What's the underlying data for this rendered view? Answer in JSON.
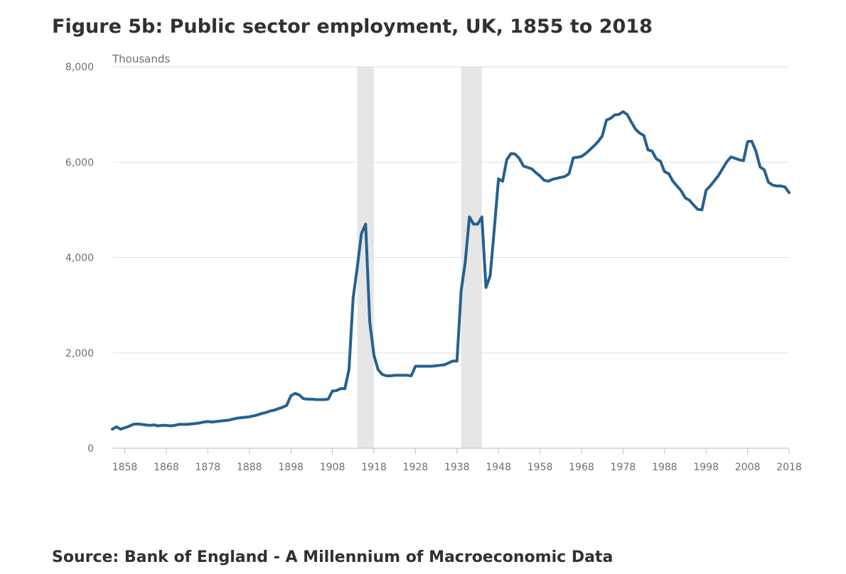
{
  "header": {
    "title": "Figure 5b: Public sector employment, UK, 1855 to 2018"
  },
  "footer": {
    "source": "Source: Bank of England - A Millennium of Macroeconomic Data"
  },
  "colors": {
    "line": "#27608f",
    "shade": "#e6e6e6",
    "grid": "#e2e2e3",
    "axis": "#bdbdbd",
    "text": "#707071",
    "title": "#323132"
  },
  "chart_data": {
    "type": "line",
    "title": "Figure 5b: Public sector employment, UK, 1855 to 2018",
    "ylabel": "Thousands",
    "xlabel": "",
    "xlim": [
      1855,
      2018
    ],
    "ylim": [
      0,
      8000
    ],
    "yticks": [
      0,
      2000,
      4000,
      6000,
      8000
    ],
    "ytick_labels": [
      "0",
      "2,000",
      "4,000",
      "6,000",
      "8,000"
    ],
    "xticks": [
      1858,
      1868,
      1878,
      1888,
      1898,
      1908,
      1918,
      1928,
      1938,
      1948,
      1958,
      1968,
      1978,
      1988,
      1998,
      2008,
      2018
    ],
    "xtick_labels": [
      "1858",
      "1868",
      "1878",
      "1888",
      "1898",
      "1908",
      "1918",
      "1928",
      "1938",
      "1948",
      "1958",
      "1968",
      "1978",
      "1988",
      "1998",
      "2008",
      "2018"
    ],
    "grid": true,
    "legend": "none",
    "shaded_periods": [
      [
        1914,
        1918
      ],
      [
        1939,
        1944
      ]
    ],
    "series": [
      {
        "name": "",
        "x": [
          1855,
          1856,
          1857,
          1858,
          1859,
          1860,
          1861,
          1862,
          1863,
          1864,
          1865,
          1866,
          1867,
          1868,
          1869,
          1870,
          1871,
          1872,
          1873,
          1874,
          1875,
          1876,
          1877,
          1878,
          1879,
          1880,
          1881,
          1882,
          1883,
          1884,
          1885,
          1886,
          1887,
          1888,
          1889,
          1890,
          1891,
          1892,
          1893,
          1894,
          1895,
          1896,
          1897,
          1898,
          1899,
          1900,
          1901,
          1902,
          1903,
          1904,
          1905,
          1906,
          1907,
          1908,
          1909,
          1910,
          1911,
          1912,
          1913,
          1914,
          1915,
          1916,
          1917,
          1918,
          1919,
          1920,
          1921,
          1922,
          1923,
          1924,
          1925,
          1926,
          1927,
          1928,
          1929,
          1930,
          1931,
          1932,
          1933,
          1934,
          1935,
          1936,
          1937,
          1938,
          1939,
          1940,
          1941,
          1942,
          1943,
          1944,
          1945,
          1946,
          1947,
          1948,
          1949,
          1950,
          1951,
          1952,
          1953,
          1954,
          1955,
          1956,
          1957,
          1958,
          1959,
          1960,
          1961,
          1962,
          1963,
          1964,
          1965,
          1966,
          1967,
          1968,
          1969,
          1970,
          1971,
          1972,
          1973,
          1974,
          1975,
          1976,
          1977,
          1978,
          1979,
          1980,
          1981,
          1982,
          1983,
          1984,
          1985,
          1986,
          1987,
          1988,
          1989,
          1990,
          1991,
          1992,
          1993,
          1994,
          1995,
          1996,
          1997,
          1998,
          1999,
          2000,
          2001,
          2002,
          2003,
          2004,
          2005,
          2006,
          2007,
          2008,
          2009,
          2010,
          2011,
          2012,
          2013,
          2014,
          2015,
          2016,
          2017,
          2018
        ],
        "y": [
          400,
          450,
          400,
          430,
          460,
          500,
          510,
          500,
          490,
          480,
          490,
          470,
          480,
          480,
          470,
          480,
          500,
          500,
          500,
          510,
          520,
          530,
          550,
          560,
          550,
          560,
          570,
          580,
          590,
          610,
          630,
          640,
          650,
          660,
          680,
          700,
          730,
          750,
          780,
          800,
          830,
          860,
          900,
          1100,
          1150,
          1120,
          1040,
          1030,
          1030,
          1020,
          1020,
          1020,
          1030,
          1200,
          1210,
          1250,
          1250,
          1650,
          3150,
          3800,
          4500,
          4700,
          2650,
          1950,
          1650,
          1550,
          1520,
          1520,
          1530,
          1530,
          1530,
          1530,
          1520,
          1720,
          1720,
          1720,
          1720,
          1720,
          1730,
          1740,
          1750,
          1790,
          1830,
          1830,
          3300,
          3900,
          4850,
          4700,
          4700,
          4850,
          3370,
          3620,
          4600,
          5650,
          5600,
          6050,
          6180,
          6170,
          6080,
          5920,
          5890,
          5860,
          5780,
          5710,
          5620,
          5600,
          5640,
          5660,
          5680,
          5700,
          5760,
          6090,
          6100,
          6120,
          6180,
          6260,
          6340,
          6430,
          6550,
          6880,
          6920,
          6990,
          7000,
          7060,
          7000,
          6840,
          6690,
          6610,
          6560,
          6260,
          6230,
          6070,
          6020,
          5800,
          5760,
          5600,
          5500,
          5400,
          5250,
          5200,
          5100,
          5010,
          5000,
          5410,
          5500,
          5610,
          5720,
          5870,
          6010,
          6110,
          6080,
          6050,
          6030,
          6430,
          6440,
          6230,
          5900,
          5840,
          5580,
          5520,
          5500,
          5500,
          5480,
          5360
        ]
      }
    ]
  }
}
